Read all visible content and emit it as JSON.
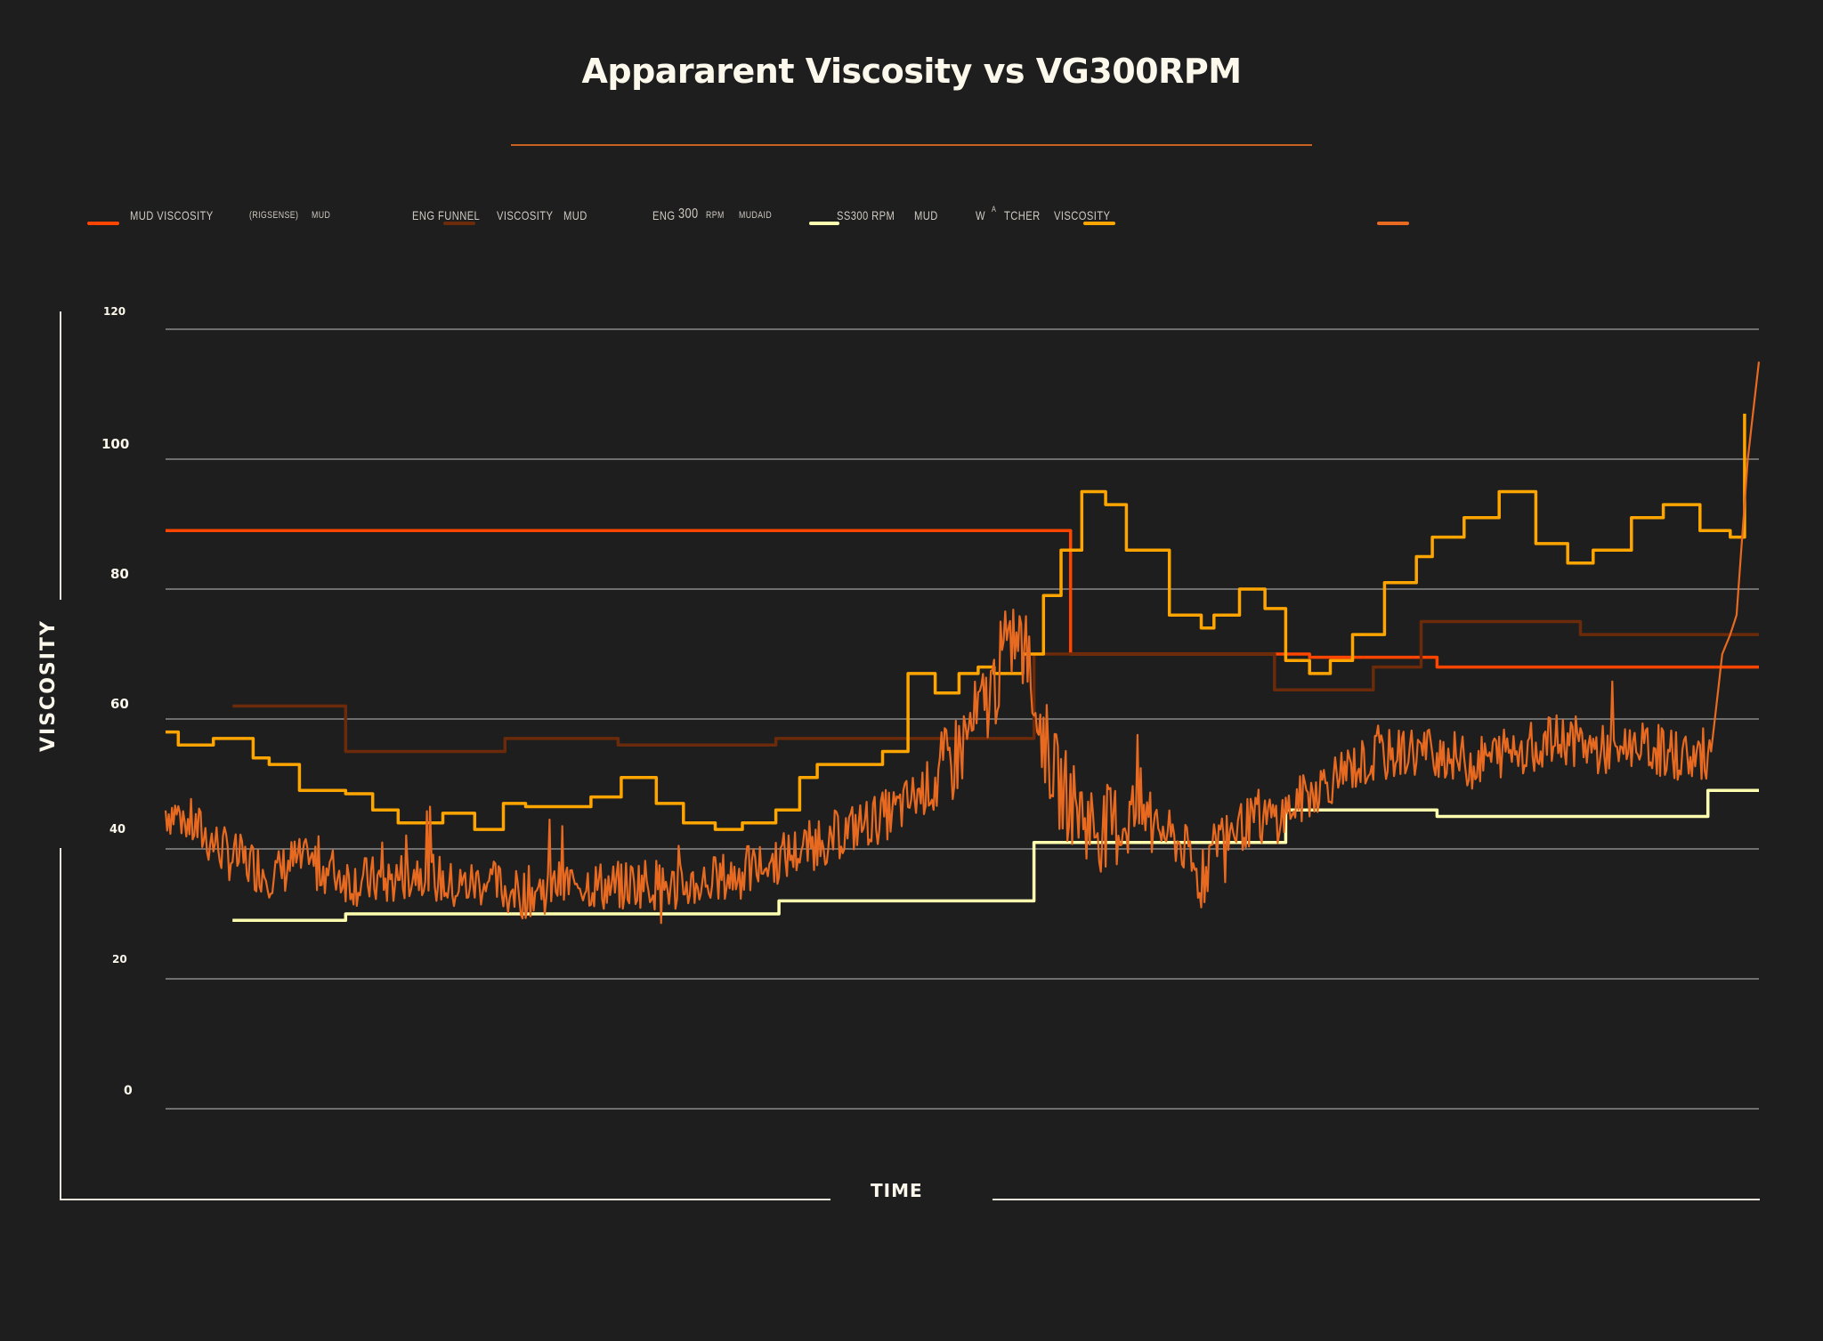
{
  "header": {
    "title": "Appararent Viscosity vs VG300RPM"
  },
  "legend": {
    "items": [
      {
        "label": "MUD VISCOSITY",
        "color": "#ff4500"
      },
      {
        "label": "(RIGSENSE)",
        "color": null
      },
      {
        "label": "MUD",
        "color": null
      },
      {
        "label": "ENG FUNNEL",
        "color": "#6b2a0a"
      },
      {
        "label": "VISCOSITY",
        "color": null
      },
      {
        "label": "MUD",
        "color": null
      },
      {
        "label": "ENG",
        "color": null
      },
      {
        "label": "300",
        "color": null
      },
      {
        "label": "RPM",
        "color": null
      },
      {
        "label": "MUDAID",
        "color": null
      },
      {
        "label": "SS300 RPM",
        "color": "#ffffb0"
      },
      {
        "label": "MUD",
        "color": null
      },
      {
        "label": "W",
        "color": null
      },
      {
        "label": "A",
        "color": null
      },
      {
        "label": "TCHER",
        "color": null
      },
      {
        "label": "VISCOSITY",
        "color": "#ffa500"
      },
      {
        "label": "",
        "color": "#e86a20"
      }
    ]
  },
  "axes": {
    "ylabel": "VISCOSITY",
    "xlabel": "TIME",
    "yticks": [
      "120",
      "100",
      "80",
      "60",
      "40",
      "20",
      "0"
    ]
  },
  "chart_data": {
    "type": "line",
    "title": "Appararent Viscosity vs VG300RPM",
    "xlabel": "TIME",
    "ylabel": "VISCOSITY",
    "ylim": [
      0,
      120
    ],
    "xlim": [
      0,
      100
    ],
    "grid": true,
    "legend_position": "top",
    "yticks": [
      0,
      20,
      40,
      60,
      80,
      100,
      120
    ],
    "series": [
      {
        "name": "Mud Viscosity (Rigsense)",
        "color": "#ff4500",
        "step": true,
        "x": [
          0,
          56.8,
          56.8,
          71.8,
          71.8,
          79.8,
          79.8,
          86.4,
          86.4,
          88.8,
          88.8,
          100
        ],
        "y": [
          89,
          89,
          70,
          70,
          69.5,
          69.5,
          68,
          68,
          68,
          68,
          68,
          68
        ]
      },
      {
        "name": "Mud Eng Funnel Viscosity",
        "color": "#6b2a0a",
        "step": true,
        "x": [
          4.2,
          11.3,
          11.3,
          21.3,
          21.3,
          28.4,
          28.4,
          38.3,
          38.3,
          54.5,
          54.5,
          61.7,
          61.7,
          69.6,
          69.6,
          75.8,
          75.8,
          78.8,
          78.8,
          88.8,
          88.8,
          100
        ],
        "y": [
          62,
          62,
          55,
          55,
          57,
          57,
          56,
          56,
          57,
          57,
          70,
          70,
          70,
          70,
          64.5,
          64.5,
          68,
          68,
          75,
          75,
          73,
          73
        ]
      },
      {
        "name": "Mud SS300 RPM (MudAid)",
        "color": "#ffffb0",
        "step": true,
        "x": [
          4.2,
          11.3,
          11.3,
          38.5,
          38.5,
          54.5,
          54.5,
          70.3,
          70.3,
          79.8,
          79.8,
          96.8,
          96.8,
          100
        ],
        "y": [
          29,
          29,
          30,
          30,
          32,
          32,
          41,
          41,
          46,
          46,
          45,
          45,
          49,
          49
        ]
      },
      {
        "name": "Watcher Viscosity",
        "color": "#ffa500",
        "step": true,
        "x": [
          0,
          0.8,
          3,
          5.5,
          6.5,
          8.4,
          11.3,
          13,
          14.6,
          17.4,
          19.4,
          21.2,
          22.6,
          25,
          26.7,
          28.6,
          30.8,
          32.5,
          34.5,
          36.2,
          38.3,
          39.8,
          40.9,
          43,
          45,
          46.6,
          48.3,
          49.8,
          51,
          52,
          53.8,
          55.1,
          56.2,
          57.5,
          59,
          60.3,
          63,
          65,
          65.8,
          67.4,
          69,
          70.3,
          71.8,
          73.1,
          74.5,
          76.5,
          78.5,
          79.5,
          81.5,
          83.7,
          86,
          88,
          89.6,
          92,
          94,
          96.3,
          98.2,
          99.1
        ],
        "y": [
          58,
          56,
          57,
          54,
          53,
          49,
          48.5,
          46,
          44,
          45.5,
          43,
          47,
          46.5,
          46.5,
          48,
          51,
          47,
          44,
          43,
          44,
          46,
          51,
          53,
          53,
          55,
          67,
          64,
          67,
          68,
          67,
          70,
          79,
          86,
          95,
          93,
          86,
          76,
          74,
          76,
          80,
          77,
          69,
          67,
          69,
          73,
          81,
          85,
          88,
          91,
          95,
          87,
          84,
          86,
          91,
          93,
          89,
          88,
          107
        ]
      },
      {
        "name": "Apparent Viscosity",
        "color": "#e86a20",
        "step": false,
        "x": [
          0,
          1,
          2,
          3,
          4,
          5,
          6,
          7,
          8,
          10,
          12,
          14,
          16,
          18,
          20,
          22,
          24,
          26,
          28,
          30,
          32,
          34,
          36,
          38,
          40,
          42,
          44,
          46,
          48,
          49,
          50,
          51,
          52,
          53,
          54,
          55,
          56,
          57,
          58,
          59,
          60,
          61,
          62,
          63,
          64,
          65,
          66,
          67,
          68,
          70,
          72,
          74,
          76,
          78,
          80,
          82,
          84,
          86,
          88,
          90,
          92,
          94,
          96,
          97,
          97.7,
          98.2,
          98.6,
          99.3,
          100
        ],
        "y": [
          46,
          45,
          43,
          41,
          39,
          38,
          37,
          36,
          38,
          37,
          35,
          35,
          37,
          34,
          35,
          33,
          34,
          35,
          34,
          35,
          34,
          35,
          36,
          38,
          40,
          42,
          44,
          46,
          50,
          52,
          56,
          60,
          65,
          73,
          70,
          58,
          50,
          47,
          44,
          43,
          44,
          46,
          44,
          42,
          40,
          34,
          42,
          43,
          44,
          45,
          49,
          52,
          54,
          55,
          55,
          53,
          55,
          56,
          57,
          55,
          56,
          55,
          54,
          55,
          70,
          73,
          76,
          100,
          115
        ]
      }
    ]
  }
}
